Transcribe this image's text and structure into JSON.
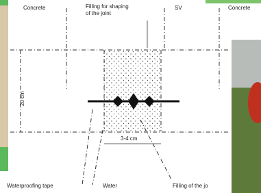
{
  "labels": {
    "concrete_left": "Concrete",
    "filling_shaping": [
      "Filling for shaping",
      "of the joint"
    ],
    "sv": "SV",
    "concrete_right": "Concrete",
    "height": "20 cm",
    "width": "3-4 cm",
    "tape": "Waterproofing tape",
    "water": "Water",
    "filling_joint": "Filling of the jo"
  }
}
